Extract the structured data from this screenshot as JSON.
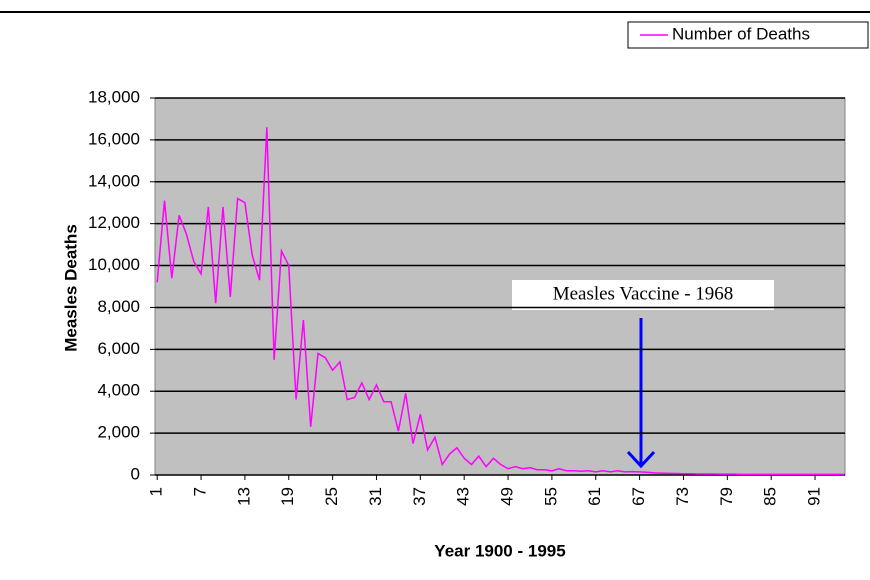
{
  "chart_data": {
    "type": "line",
    "x": [
      1,
      2,
      3,
      4,
      5,
      6,
      7,
      8,
      9,
      10,
      11,
      12,
      13,
      14,
      15,
      16,
      17,
      18,
      19,
      20,
      21,
      22,
      23,
      24,
      25,
      26,
      27,
      28,
      29,
      30,
      31,
      32,
      33,
      34,
      35,
      36,
      37,
      38,
      39,
      40,
      41,
      42,
      43,
      44,
      45,
      46,
      47,
      48,
      49,
      50,
      51,
      52,
      53,
      54,
      55,
      56,
      57,
      58,
      59,
      60,
      61,
      62,
      63,
      64,
      65,
      66,
      67,
      68,
      69,
      70,
      71,
      72,
      73,
      74,
      75,
      76,
      77,
      78,
      79,
      80,
      81,
      82,
      83,
      84,
      85,
      86,
      87,
      88,
      89,
      90,
      91,
      92,
      93,
      94,
      95
    ],
    "series": [
      {
        "name": "Number of Deaths",
        "color": "#ff00ff",
        "values": [
          9200,
          13100,
          9400,
          12400,
          11500,
          10200,
          9600,
          12800,
          8200,
          12800,
          8500,
          13200,
          13000,
          10500,
          9300,
          16600,
          5500,
          10700,
          10000,
          3600,
          7400,
          2300,
          5800,
          5600,
          5000,
          5400,
          3600,
          3700,
          4400,
          3600,
          4300,
          3500,
          3500,
          2100,
          3900,
          1500,
          2900,
          1200,
          1800,
          500,
          1000,
          1300,
          800,
          500,
          900,
          400,
          800,
          500,
          300,
          400,
          300,
          350,
          250,
          250,
          200,
          300,
          200,
          200,
          180,
          200,
          150,
          200,
          150,
          200,
          150,
          160,
          150,
          130,
          100,
          90,
          80,
          70,
          60,
          60,
          50,
          50,
          50,
          40,
          40,
          40,
          30,
          30,
          30,
          30,
          30,
          30,
          30,
          30,
          30,
          30,
          30,
          30,
          30,
          30,
          30
        ]
      }
    ],
    "xlabel": "Year 1900 - 1995",
    "ylabel": "Measles Deaths",
    "annotation": "Measles Vaccine - 1968",
    "xlim": [
      0.7,
      95.1
    ],
    "xticks": [
      1,
      7,
      13,
      19,
      25,
      31,
      37,
      43,
      49,
      55,
      61,
      67,
      73,
      79,
      85,
      91
    ],
    "ylim": [
      0,
      18000
    ],
    "yticks": [
      0,
      {
        "value": 2000,
        "label": "2,000"
      },
      {
        "value": 4000,
        "label": "4,000"
      },
      {
        "value": 6000,
        "label": "6,000"
      },
      {
        "value": 8000,
        "label": "8,000"
      },
      {
        "value": 10000,
        "label": "10,000"
      },
      {
        "value": 12000,
        "label": "12,000"
      },
      {
        "value": 14000,
        "label": "14,000"
      },
      {
        "value": 16000,
        "label": "16,000"
      },
      {
        "value": 18000,
        "label": "18,000"
      }
    ],
    "grid": true,
    "legend": "top-right"
  }
}
